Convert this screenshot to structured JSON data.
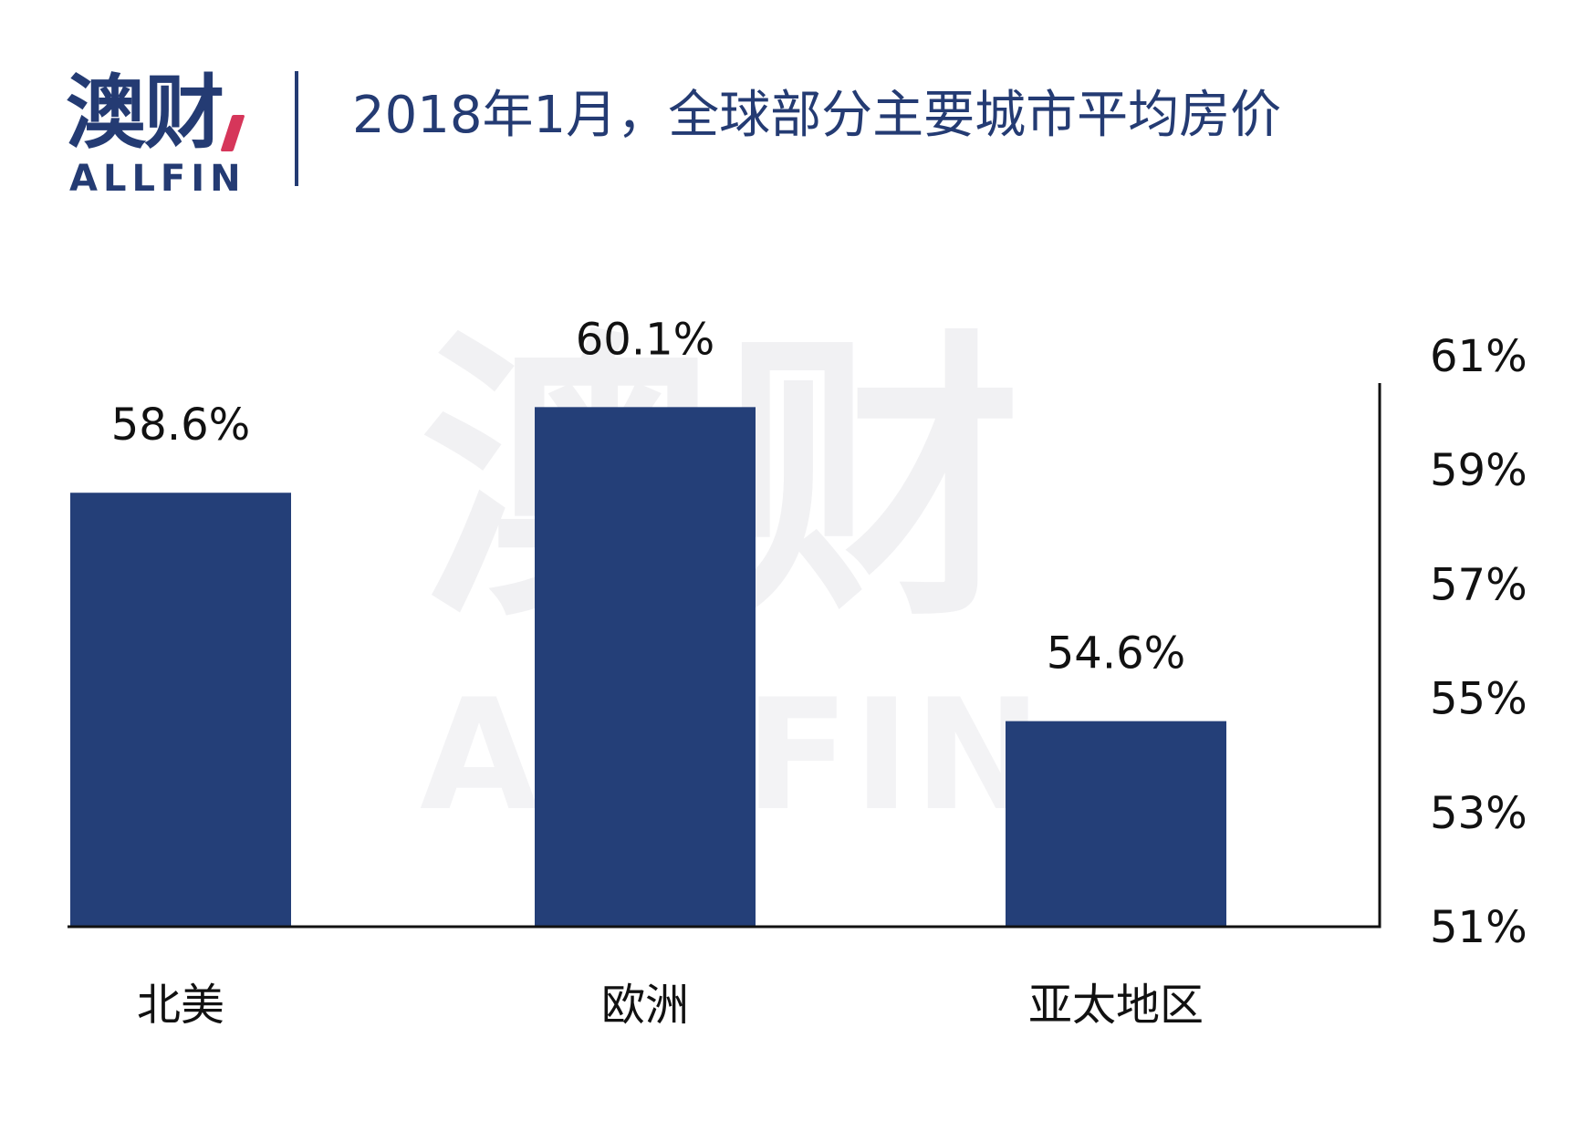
{
  "header": {
    "logo_cn": "澳财",
    "logo_en": "ALLFIN",
    "title": "2018年1月，全球部分主要城市平均房价"
  },
  "watermark": {
    "cn": "澳财",
    "en": "ALLFIN"
  },
  "colors": {
    "bar": "#243f78",
    "brand": "#243b73",
    "accent": "#d6365a",
    "text": "#111111",
    "axis": "#111111",
    "watermark": "#f1f1f3"
  },
  "chart_data": {
    "type": "bar",
    "title": "2018年1月，全球部分主要城市平均房价",
    "xlabel": "",
    "ylabel": "",
    "categories": [
      "北美",
      "欧洲",
      "亚太地区"
    ],
    "values": [
      58.6,
      60.1,
      54.6
    ],
    "data_labels": [
      "58.6%",
      "60.1%",
      "54.6%"
    ],
    "ylim": [
      51,
      61
    ],
    "y_ticks": [
      61,
      59,
      57,
      55,
      53,
      51
    ],
    "y_tick_labels": [
      "61%",
      "59%",
      "57%",
      "55%",
      "53%",
      "51%"
    ],
    "y_axis_position": "right",
    "grid": false,
    "legend": "none"
  }
}
